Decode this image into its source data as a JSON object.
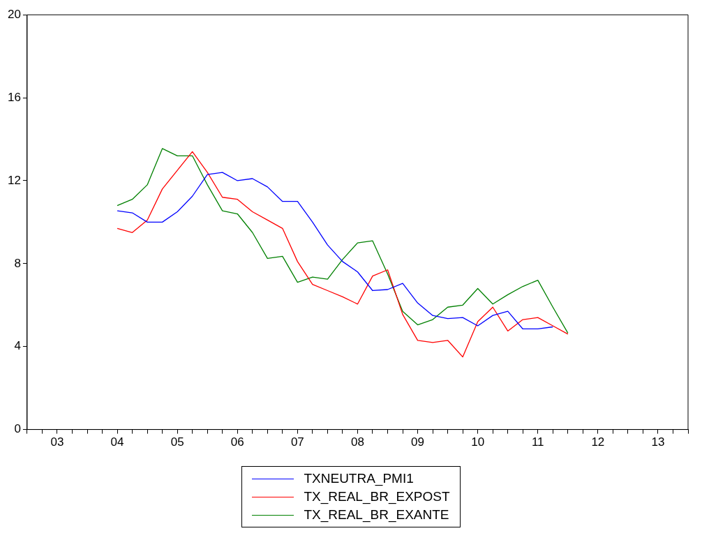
{
  "chart_data": {
    "type": "line",
    "categories": [
      null,
      null,
      "03",
      null,
      null,
      null,
      "04",
      null,
      null,
      null,
      "05",
      null,
      null,
      null,
      "06",
      null,
      null,
      null,
      "07",
      null,
      null,
      null,
      "08",
      null,
      null,
      null,
      "09",
      null,
      null,
      null,
      "10",
      null,
      null,
      null,
      "11",
      null,
      null,
      null,
      "12",
      null,
      null,
      null,
      "13",
      null,
      null
    ],
    "series": [
      {
        "name": "TXNEUTRA_PMI1",
        "color": "#0000ff",
        "values": [
          null,
          null,
          null,
          null,
          null,
          null,
          10.55,
          10.45,
          10.0,
          10.0,
          10.5,
          11.25,
          12.3,
          12.4,
          12.0,
          12.1,
          11.7,
          11.0,
          11.0,
          10.0,
          8.9,
          8.1,
          7.6,
          6.7,
          6.75,
          7.05,
          6.1,
          5.5,
          5.35,
          5.4,
          5.0,
          5.5,
          5.7,
          4.85,
          4.85,
          4.95,
          null,
          null,
          null,
          null,
          null,
          null,
          null,
          null,
          null
        ]
      },
      {
        "name": "TX_REAL_BR_EXPOST",
        "color": "#ff0000",
        "values": [
          null,
          null,
          null,
          null,
          null,
          null,
          9.7,
          9.5,
          10.1,
          11.6,
          12.5,
          13.4,
          12.4,
          11.2,
          11.1,
          10.5,
          10.1,
          9.7,
          8.1,
          7.0,
          6.7,
          6.4,
          6.05,
          7.4,
          7.7,
          5.55,
          4.3,
          4.2,
          4.3,
          3.5,
          5.2,
          5.9,
          4.75,
          5.3,
          5.4,
          5.0,
          4.6,
          null,
          null,
          null,
          null,
          null,
          null,
          null,
          null
        ]
      },
      {
        "name": "TX_REAL_BR_EXANTE",
        "color": "#008000",
        "values": [
          null,
          null,
          null,
          null,
          null,
          null,
          10.8,
          11.1,
          11.8,
          13.55,
          13.2,
          13.2,
          11.8,
          10.55,
          10.4,
          9.5,
          8.25,
          8.35,
          7.1,
          7.35,
          7.25,
          8.2,
          9.0,
          9.1,
          7.5,
          5.7,
          5.05,
          5.3,
          5.9,
          6.0,
          6.8,
          6.05,
          6.5,
          6.9,
          7.2,
          5.9,
          4.65,
          null,
          null,
          null,
          null,
          null,
          null,
          null,
          null
        ]
      }
    ],
    "ylim": [
      0,
      20
    ],
    "yticks": [
      0,
      4,
      8,
      12,
      16,
      20
    ],
    "grid": false,
    "legend": "bottom",
    "marker": "none",
    "line_style": "solid"
  }
}
